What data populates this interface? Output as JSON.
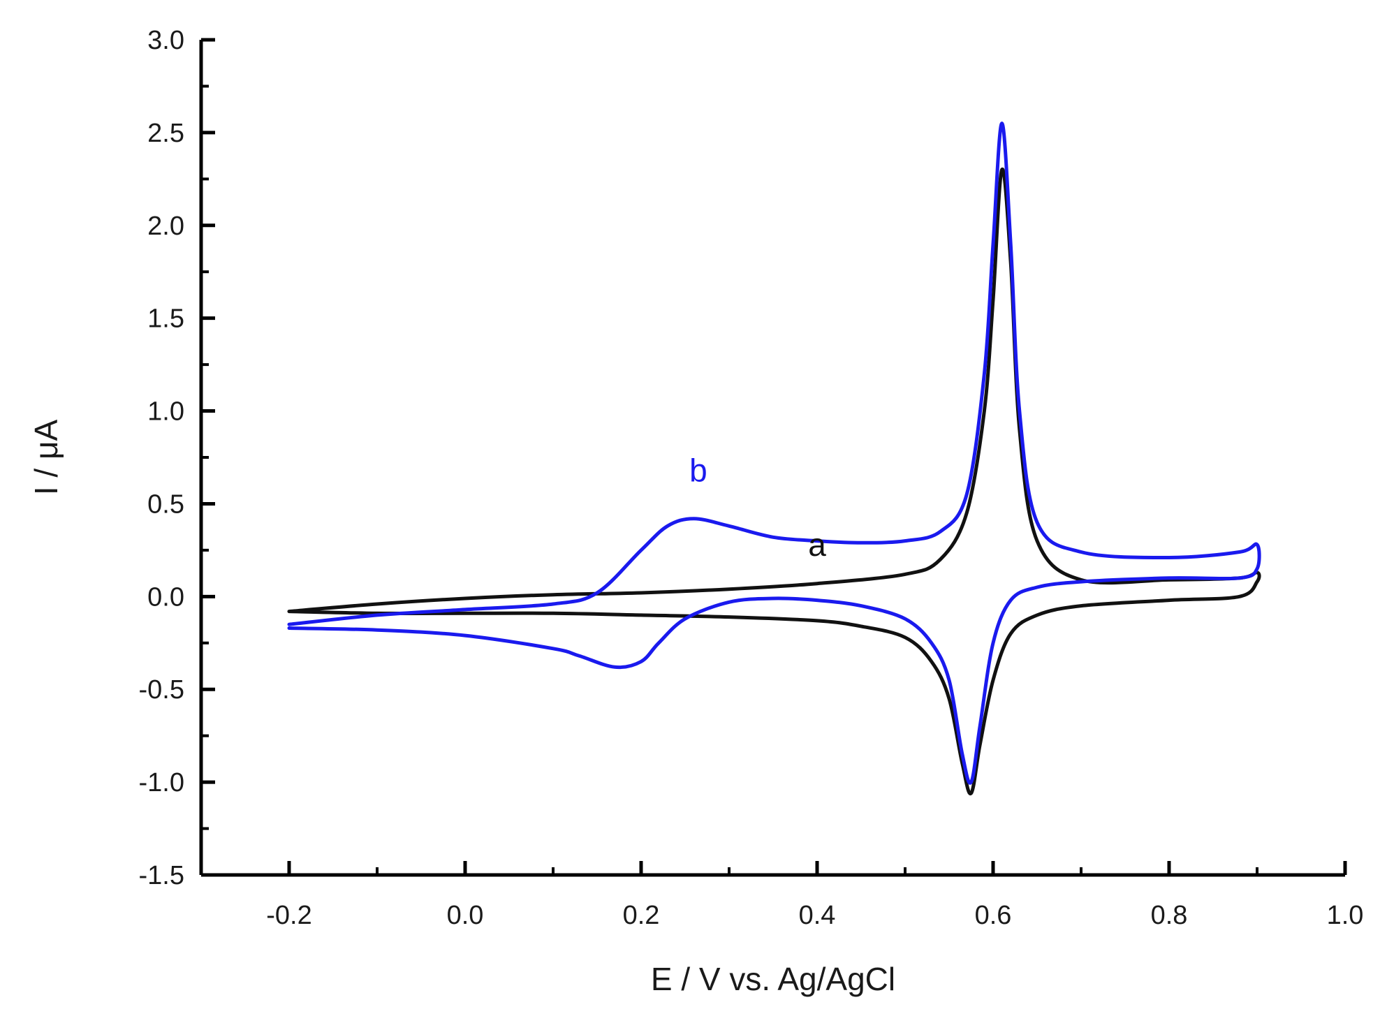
{
  "chart_data": {
    "type": "line",
    "title": "",
    "xlabel": "E / V vs. Ag/AgCl",
    "ylabel": "I / μA",
    "xlim": [
      -0.3,
      1.0
    ],
    "ylim": [
      -1.5,
      3.0
    ],
    "x_ticks": [
      -0.2,
      0.0,
      0.2,
      0.4,
      0.6,
      0.8,
      1.0
    ],
    "x_tick_labels": [
      "-0.2",
      "0.0",
      "0.2",
      "0.4",
      "0.6",
      "0.8",
      "1.0"
    ],
    "y_ticks": [
      -1.5,
      -1.0,
      -0.5,
      0.0,
      0.5,
      1.0,
      1.5,
      2.0,
      2.5,
      3.0
    ],
    "y_tick_labels": [
      "-1.5",
      "-1.0",
      "-0.5",
      "0.0",
      "0.5",
      "1.0",
      "1.5",
      "2.0",
      "2.5",
      "3.0"
    ],
    "grid": false,
    "legend": "none",
    "series": [
      {
        "name": "a",
        "color": "#111111",
        "label_at": [
          0.4,
          0.22
        ],
        "x": [
          -0.2,
          -0.1,
          0.0,
          0.1,
          0.2,
          0.3,
          0.4,
          0.5,
          0.54,
          0.57,
          0.59,
          0.6,
          0.61,
          0.62,
          0.63,
          0.65,
          0.7,
          0.8,
          0.88,
          0.9,
          0.9,
          0.88,
          0.8,
          0.7,
          0.65,
          0.62,
          0.6,
          0.585,
          0.575,
          0.565,
          0.55,
          0.53,
          0.5,
          0.45,
          0.4,
          0.3,
          0.2,
          0.1,
          0.0,
          -0.1,
          -0.2
        ],
        "y": [
          -0.08,
          -0.04,
          -0.01,
          0.01,
          0.02,
          0.04,
          0.07,
          0.12,
          0.2,
          0.45,
          1.0,
          1.6,
          2.3,
          1.8,
          0.9,
          0.3,
          0.09,
          0.09,
          0.1,
          0.13,
          0.08,
          0.0,
          -0.02,
          -0.05,
          -0.1,
          -0.2,
          -0.45,
          -0.8,
          -1.06,
          -0.9,
          -0.55,
          -0.35,
          -0.22,
          -0.16,
          -0.13,
          -0.11,
          -0.1,
          -0.09,
          -0.09,
          -0.09,
          -0.08
        ]
      },
      {
        "name": "b",
        "color": "#1a1aee",
        "label_at": [
          0.265,
          0.62
        ],
        "x": [
          -0.2,
          -0.1,
          0.0,
          0.1,
          0.15,
          0.2,
          0.23,
          0.26,
          0.3,
          0.35,
          0.4,
          0.45,
          0.5,
          0.54,
          0.57,
          0.59,
          0.6,
          0.61,
          0.62,
          0.63,
          0.65,
          0.7,
          0.8,
          0.88,
          0.9,
          0.9,
          0.88,
          0.8,
          0.7,
          0.65,
          0.62,
          0.6,
          0.585,
          0.575,
          0.565,
          0.55,
          0.53,
          0.5,
          0.45,
          0.4,
          0.35,
          0.3,
          0.25,
          0.22,
          0.2,
          0.17,
          0.13,
          0.1,
          0.0,
          -0.1,
          -0.2
        ],
        "y": [
          -0.15,
          -0.1,
          -0.07,
          -0.04,
          0.02,
          0.25,
          0.38,
          0.42,
          0.38,
          0.32,
          0.3,
          0.29,
          0.3,
          0.35,
          0.55,
          1.2,
          1.9,
          2.55,
          1.9,
          1.0,
          0.4,
          0.24,
          0.21,
          0.24,
          0.28,
          0.15,
          0.1,
          0.1,
          0.08,
          0.05,
          -0.02,
          -0.25,
          -0.7,
          -1.0,
          -0.85,
          -0.45,
          -0.25,
          -0.12,
          -0.05,
          -0.02,
          -0.01,
          -0.03,
          -0.12,
          -0.25,
          -0.35,
          -0.38,
          -0.32,
          -0.28,
          -0.21,
          -0.18,
          -0.17
        ]
      }
    ]
  }
}
